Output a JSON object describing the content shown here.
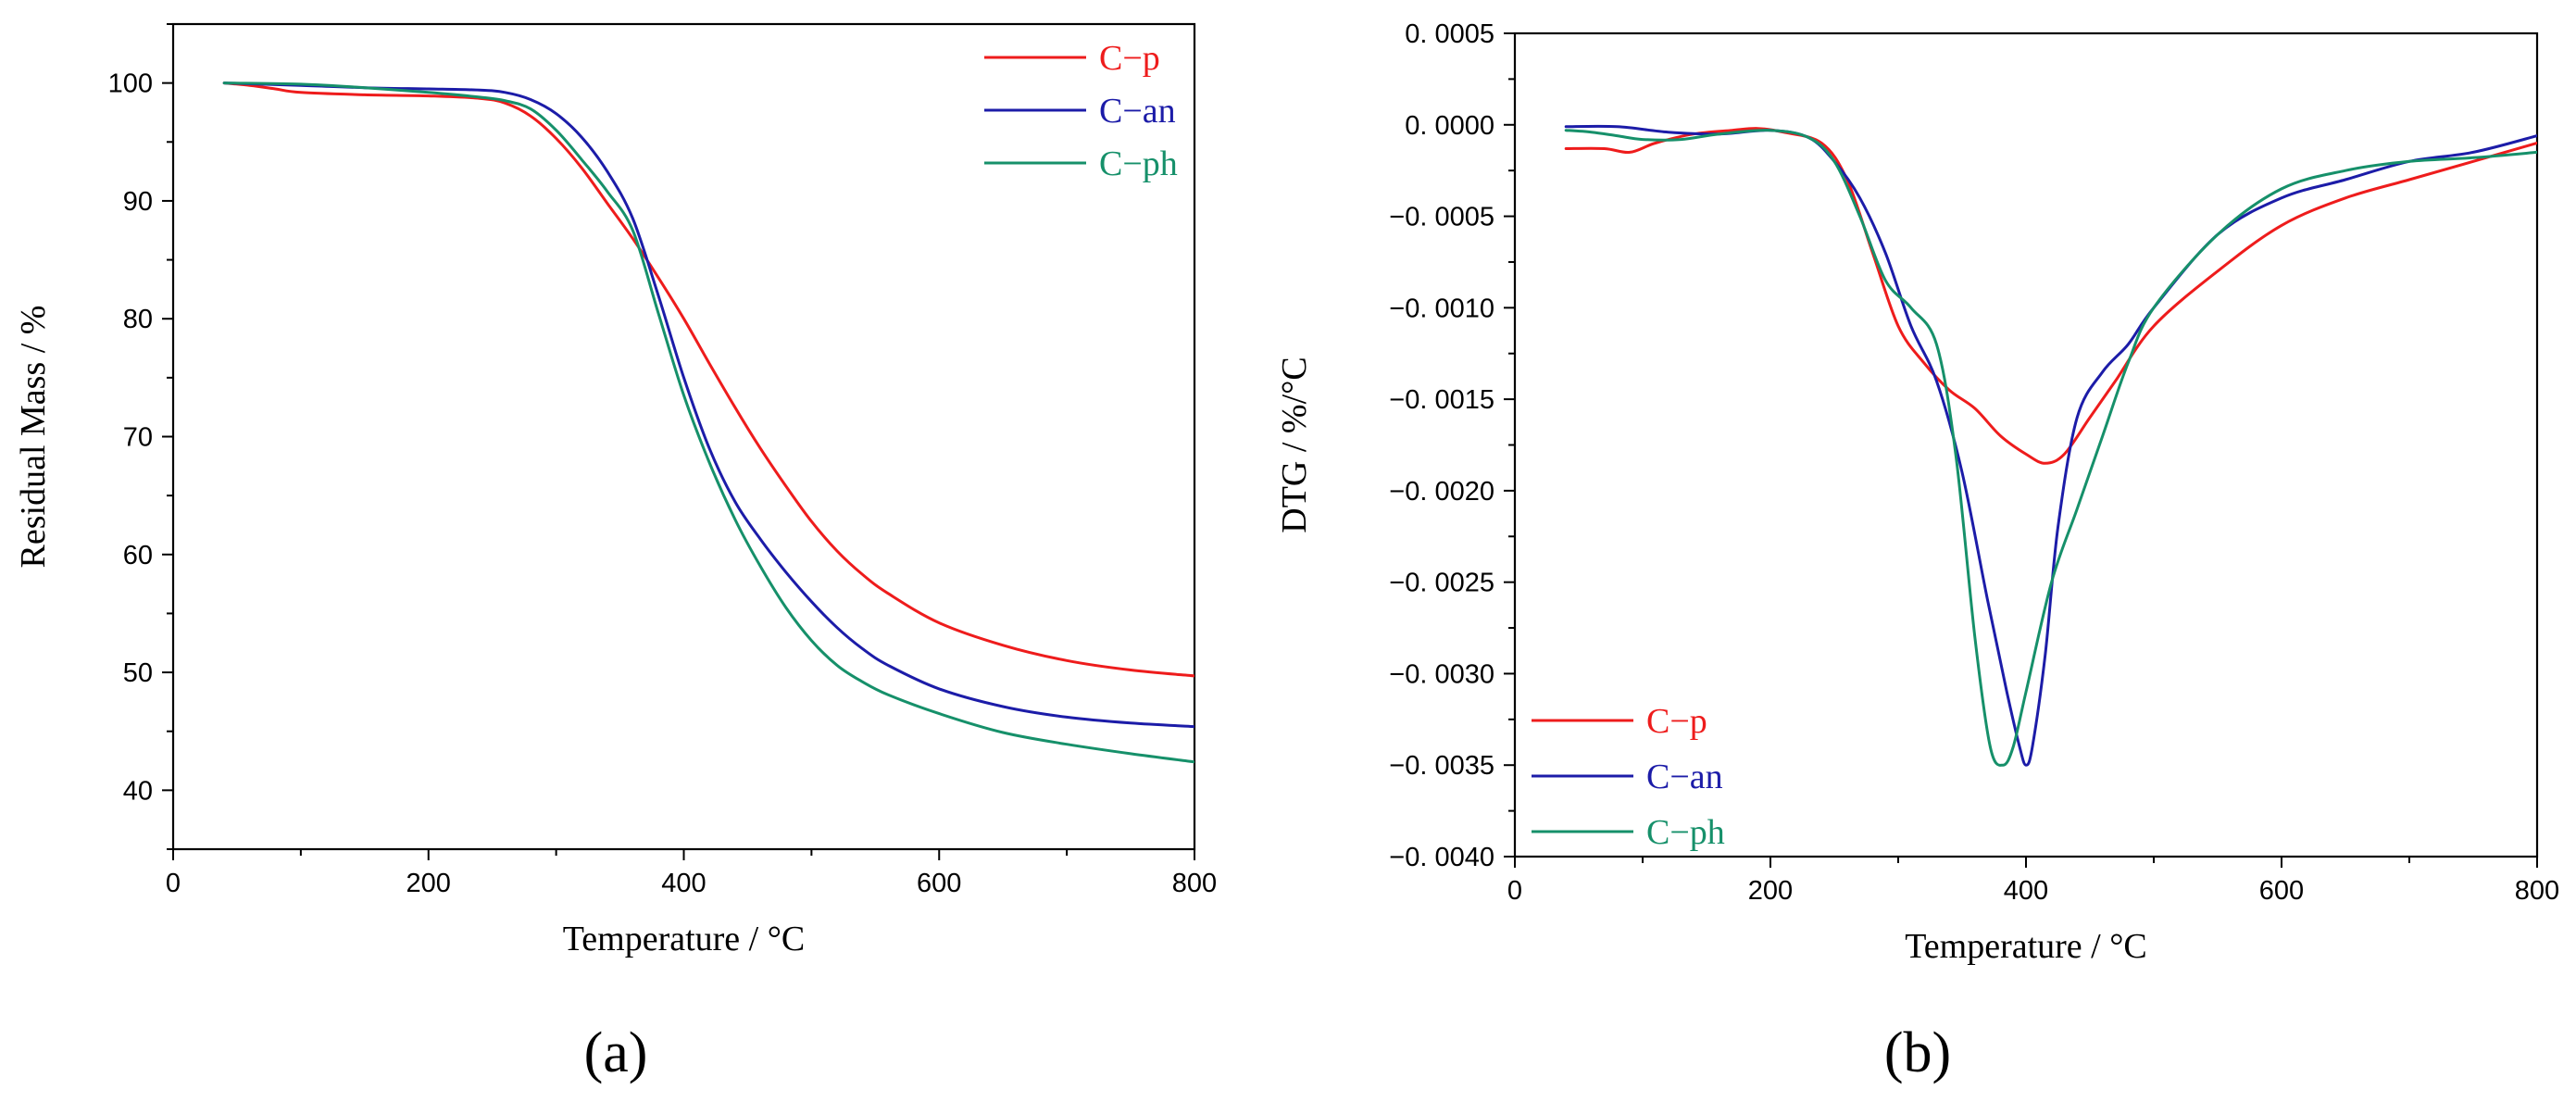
{
  "chart_data": [
    {
      "panel_label": "(a)",
      "type": "line",
      "xlabel": "Temperature / °C",
      "ylabel": "Residual Mass / %",
      "xlim": [
        0,
        800
      ],
      "ylim": [
        35,
        105
      ],
      "xticks": [
        0,
        200,
        400,
        600,
        800
      ],
      "yticks": [
        40,
        50,
        60,
        70,
        80,
        90,
        100
      ],
      "xtick_labels": [
        "0",
        "200",
        "400",
        "600",
        "800"
      ],
      "ytick_labels": [
        "40",
        "50",
        "60",
        "70",
        "80",
        "90",
        "100"
      ],
      "legend_position": "top-right",
      "series": [
        {
          "name": "C−p",
          "color": "#ee1c1c",
          "x": [
            40,
            60,
            80,
            100,
            150,
            200,
            240,
            260,
            280,
            300,
            320,
            340,
            360,
            380,
            400,
            420,
            440,
            460,
            480,
            500,
            520,
            540,
            560,
            600,
            650,
            700,
            750,
            800
          ],
          "y": [
            100,
            99.8,
            99.5,
            99.2,
            99.0,
            98.9,
            98.7,
            98.3,
            97.2,
            95.3,
            92.8,
            89.8,
            86.8,
            83.5,
            80.0,
            76.2,
            72.5,
            69.0,
            65.8,
            62.8,
            60.3,
            58.3,
            56.7,
            54.2,
            52.3,
            51.0,
            50.2,
            49.7
          ]
        },
        {
          "name": "C−an",
          "color": "#1c1ca8",
          "x": [
            40,
            100,
            150,
            200,
            240,
            260,
            280,
            300,
            320,
            340,
            360,
            380,
            400,
            420,
            440,
            460,
            480,
            500,
            520,
            540,
            560,
            600,
            650,
            700,
            750,
            800
          ],
          "y": [
            100,
            99.8,
            99.6,
            99.5,
            99.4,
            99.2,
            98.6,
            97.4,
            95.4,
            92.5,
            88.5,
            82.0,
            75.0,
            69.0,
            64.5,
            61.3,
            58.5,
            56.0,
            53.8,
            52.0,
            50.6,
            48.6,
            47.1,
            46.2,
            45.7,
            45.4
          ]
        },
        {
          "name": "C−ph",
          "color": "#16906a",
          "x": [
            40,
            100,
            150,
            200,
            240,
            260,
            280,
            300,
            320,
            340,
            360,
            380,
            400,
            420,
            440,
            460,
            480,
            500,
            520,
            540,
            560,
            600,
            650,
            700,
            750,
            800
          ],
          "y": [
            100,
            99.9,
            99.6,
            99.2,
            98.8,
            98.5,
            97.8,
            96.0,
            93.5,
            90.8,
            87.5,
            80.5,
            73.5,
            67.8,
            63.0,
            59.0,
            55.5,
            52.7,
            50.6,
            49.2,
            48.1,
            46.5,
            44.9,
            43.9,
            43.1,
            42.4
          ]
        }
      ]
    },
    {
      "panel_label": "(b)",
      "type": "line",
      "xlabel": "Temperature / °C",
      "ylabel": "DTG / %/°C",
      "xlim": [
        0,
        800
      ],
      "ylim": [
        -0.004,
        0.0005
      ],
      "xticks": [
        0,
        200,
        400,
        600,
        800
      ],
      "yticks": [
        0.0005,
        0.0,
        -0.0005,
        -0.001,
        -0.0015,
        -0.002,
        -0.0025,
        -0.003,
        -0.0035,
        -0.004
      ],
      "xtick_labels": [
        "0",
        "200",
        "400",
        "600",
        "800"
      ],
      "ytick_labels": [
        "0. 0005",
        "0. 0000",
        "−0. 0005",
        "−0. 0010",
        "−0. 0015",
        "−0. 0020",
        "−0. 0025",
        "−0. 0030",
        "−0. 0035",
        "−0. 0040"
      ],
      "legend_position": "bottom-left",
      "series": [
        {
          "name": "C−p",
          "color": "#ee1c1c",
          "x": [
            40,
            70,
            90,
            110,
            140,
            170,
            190,
            210,
            240,
            260,
            280,
            300,
            320,
            340,
            360,
            380,
            400,
            415,
            430,
            450,
            470,
            500,
            550,
            600,
            650,
            700,
            750,
            800
          ],
          "y": [
            -0.00013,
            -0.00013,
            -0.00015,
            -0.0001,
            -5e-05,
            -3e-05,
            -2e-05,
            -4e-05,
            -0.0001,
            -0.0003,
            -0.0007,
            -0.0011,
            -0.0013,
            -0.00145,
            -0.00155,
            -0.0017,
            -0.0018,
            -0.00185,
            -0.0018,
            -0.0016,
            -0.0014,
            -0.0011,
            -0.0008,
            -0.00055,
            -0.0004,
            -0.0003,
            -0.0002,
            -0.0001
          ]
        },
        {
          "name": "C−an",
          "color": "#1c1ca8",
          "x": [
            40,
            80,
            120,
            160,
            200,
            230,
            250,
            270,
            290,
            310,
            330,
            350,
            370,
            385,
            395,
            400,
            405,
            415,
            425,
            440,
            460,
            480,
            500,
            550,
            600,
            650,
            700,
            750,
            800
          ],
          "y": [
            -1e-05,
            -1e-05,
            -4e-05,
            -5e-05,
            -3e-05,
            -7e-05,
            -0.0002,
            -0.0004,
            -0.0007,
            -0.0011,
            -0.0014,
            -0.0019,
            -0.0026,
            -0.0031,
            -0.0034,
            -0.0035,
            -0.0034,
            -0.0029,
            -0.0022,
            -0.0016,
            -0.00135,
            -0.0012,
            -0.001,
            -0.0006,
            -0.0004,
            -0.0003,
            -0.0002,
            -0.00015,
            -6e-05
          ]
        },
        {
          "name": "C−ph",
          "color": "#16906a",
          "x": [
            40,
            60,
            80,
            100,
            130,
            160,
            200,
            230,
            250,
            270,
            290,
            310,
            330,
            345,
            360,
            372,
            382,
            390,
            400,
            420,
            440,
            460,
            480,
            500,
            550,
            600,
            650,
            700,
            750,
            800
          ],
          "y": [
            -3e-05,
            -4e-05,
            -6e-05,
            -8e-05,
            -8e-05,
            -5e-05,
            -3e-05,
            -7e-05,
            -0.0002,
            -0.0005,
            -0.00085,
            -0.001,
            -0.0012,
            -0.0018,
            -0.0028,
            -0.0034,
            -0.0035,
            -0.0034,
            -0.0031,
            -0.0025,
            -0.0021,
            -0.0017,
            -0.0013,
            -0.001,
            -0.0006,
            -0.00035,
            -0.00025,
            -0.0002,
            -0.00018,
            -0.00015
          ]
        }
      ]
    }
  ]
}
